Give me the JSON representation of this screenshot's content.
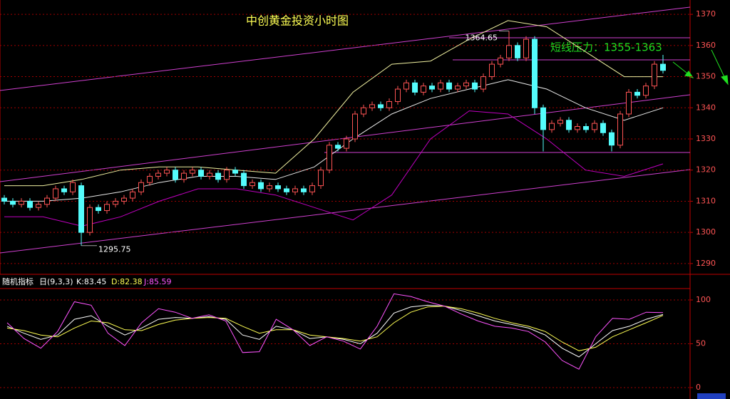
{
  "chart_data": [
    {
      "type": "candlestick",
      "title": "中创黄金投资小时图",
      "pressure_note": "短线压力：1355-1363",
      "high_label": 1364.65,
      "low_label": 1295.75,
      "up_color": "#ff5454",
      "down_color": "#54fcfc",
      "open": [
        1311,
        1310,
        1309,
        1310,
        1308,
        1309,
        1311,
        1314,
        1313,
        1315,
        1300,
        1308,
        1307,
        1309,
        1310,
        1311,
        1313,
        1316,
        1318,
        1319,
        1320,
        1317,
        1319,
        1320,
        1318,
        1319,
        1317,
        1320,
        1319,
        1315,
        1316,
        1314,
        1315,
        1314,
        1313,
        1314,
        1313,
        1315,
        1320,
        1328,
        1327,
        1330,
        1338,
        1340,
        1341,
        1340,
        1342,
        1346,
        1348,
        1345,
        1347,
        1346,
        1348,
        1346,
        1347,
        1348,
        1346,
        1350,
        1354,
        1356,
        1360,
        1356,
        1362,
        1340,
        1333,
        1335,
        1336,
        1333,
        1334,
        1333,
        1335,
        1332,
        1328,
        1338,
        1345,
        1344,
        1347,
        1354
      ],
      "high": [
        1312,
        1311,
        1311,
        1311,
        1310,
        1312,
        1315,
        1315,
        1317,
        1316,
        1309,
        1309,
        1310,
        1311,
        1312,
        1314,
        1317,
        1319,
        1320,
        1321,
        1321,
        1320,
        1321,
        1321,
        1320,
        1320,
        1321,
        1321,
        1320,
        1317,
        1317,
        1316,
        1316,
        1315,
        1315,
        1315,
        1316,
        1321,
        1329,
        1329,
        1331,
        1339,
        1341,
        1342,
        1342,
        1343,
        1347,
        1349,
        1349,
        1348,
        1348,
        1349,
        1349,
        1348,
        1349,
        1349,
        1351,
        1355,
        1357,
        1364.65,
        1361,
        1363,
        1363,
        1341,
        1336,
        1337,
        1337,
        1335,
        1335,
        1336,
        1336,
        1333,
        1339,
        1346,
        1346,
        1348,
        1355,
        1357
      ],
      "low": [
        1309,
        1308,
        1308,
        1307,
        1307,
        1308,
        1310,
        1312,
        1312,
        1295.75,
        1299,
        1306,
        1306,
        1308,
        1309,
        1310,
        1312,
        1315,
        1317,
        1318,
        1316,
        1316,
        1318,
        1317,
        1317,
        1316,
        1316,
        1318,
        1314,
        1314,
        1313,
        1313,
        1313,
        1312,
        1312,
        1312,
        1312,
        1314,
        1319,
        1326,
        1326,
        1329,
        1337,
        1339,
        1339,
        1339,
        1341,
        1345,
        1344,
        1344,
        1345,
        1345,
        1345,
        1345,
        1346,
        1345,
        1345,
        1349,
        1353,
        1355,
        1355,
        1355,
        1338,
        1326,
        1332,
        1334,
        1332,
        1332,
        1332,
        1332,
        1331,
        1326,
        1327,
        1337,
        1343,
        1343,
        1346,
        1351
      ],
      "close": [
        1310,
        1309,
        1310,
        1308,
        1309,
        1311,
        1314,
        1313,
        1316,
        1300,
        1308,
        1307,
        1309,
        1310,
        1311,
        1313,
        1316,
        1318,
        1319,
        1320,
        1317,
        1319,
        1320,
        1318,
        1319,
        1317,
        1320,
        1319,
        1315,
        1316,
        1314,
        1315,
        1314,
        1313,
        1314,
        1313,
        1315,
        1320,
        1328,
        1327,
        1330,
        1338,
        1340,
        1341,
        1340,
        1342,
        1346,
        1348,
        1345,
        1347,
        1346,
        1348,
        1346,
        1347,
        1348,
        1346,
        1350,
        1354,
        1356,
        1360,
        1356,
        1362,
        1340,
        1333,
        1335,
        1336,
        1333,
        1334,
        1333,
        1335,
        1332,
        1328,
        1338,
        1345,
        1344,
        1347,
        1354,
        1352
      ],
      "series": [
        {
          "color": "#f0f0a0",
          "values": [
            1315,
            1315,
            1317,
            1320,
            1321,
            1321,
            1320,
            1319,
            1330,
            1345,
            1354,
            1355,
            1362,
            1368,
            1366,
            1358,
            1350,
            1350
          ]
        },
        {
          "color": "#e8e8e8",
          "values": [
            1310,
            1310,
            1311,
            1313,
            1316,
            1318,
            1318,
            1317,
            1321,
            1330,
            1338,
            1343,
            1346,
            1349,
            1346,
            1340,
            1336,
            1340
          ]
        },
        {
          "color": "#c000c0",
          "values": [
            1305,
            1305,
            1302,
            1305,
            1310,
            1314,
            1314,
            1312,
            1308,
            1304,
            1312,
            1330,
            1339,
            1338,
            1330,
            1320,
            1318,
            1322
          ]
        }
      ],
      "ylim": [
        1287,
        1374.6
      ],
      "yticks": [
        1290,
        1300,
        1310,
        1320,
        1330,
        1340,
        1350,
        1360,
        1370
      ],
      "grid": true
    },
    {
      "type": "line",
      "title": "随机指标",
      "subtitle": "日(9,3,3)",
      "readouts": [
        "K:83.45",
        "D:82.38",
        "J:85.59"
      ],
      "series": [
        {
          "name": "K",
          "color": "#ffffff",
          "values": [
            70,
            62,
            55,
            60,
            78,
            82,
            70,
            60,
            68,
            78,
            80,
            79,
            81,
            78,
            60,
            55,
            70,
            66,
            56,
            58,
            55,
            50,
            62,
            85,
            92,
            94,
            93,
            88,
            82,
            76,
            72,
            68,
            60,
            45,
            35,
            50,
            65,
            70,
            78,
            83.45
          ]
        },
        {
          "name": "D",
          "color": "#ffff54",
          "values": [
            68,
            65,
            60,
            58,
            68,
            76,
            74,
            66,
            65,
            72,
            77,
            79,
            80,
            79,
            70,
            62,
            66,
            66,
            60,
            58,
            56,
            53,
            58,
            74,
            86,
            92,
            93,
            90,
            85,
            79,
            74,
            70,
            64,
            52,
            42,
            46,
            58,
            66,
            74,
            82.38
          ]
        },
        {
          "name": "J",
          "color": "#ff54ff",
          "values": [
            74,
            56,
            45,
            64,
            98,
            94,
            62,
            48,
            74,
            90,
            86,
            79,
            83,
            76,
            40,
            41,
            78,
            66,
            48,
            58,
            53,
            44,
            70,
            107,
            104,
            98,
            93,
            84,
            76,
            70,
            68,
            64,
            52,
            31,
            21,
            58,
            79,
            78,
            86,
            85.59
          ]
        }
      ],
      "ylim": [
        -13,
        113
      ],
      "yticks": [
        0,
        50,
        100
      ],
      "grid": true
    }
  ]
}
